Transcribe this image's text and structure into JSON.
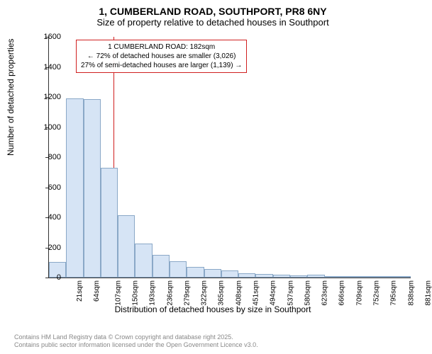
{
  "title": "1, CUMBERLAND ROAD, SOUTHPORT, PR8 6NY",
  "subtitle": "Size of property relative to detached houses in Southport",
  "y_axis_label": "Number of detached properties",
  "x_axis_label": "Distribution of detached houses by size in Southport",
  "chart": {
    "type": "histogram",
    "bar_fill": "#d6e4f5",
    "bar_stroke": "#8aa8c7",
    "background_color": "#ffffff",
    "y_ticks": [
      0,
      200,
      400,
      600,
      800,
      1000,
      1200,
      1400,
      1600
    ],
    "ylim": [
      0,
      1600
    ],
    "x_tick_labels": [
      "21sqm",
      "64sqm",
      "107sqm",
      "150sqm",
      "193sqm",
      "236sqm",
      "279sqm",
      "322sqm",
      "365sqm",
      "408sqm",
      "451sqm",
      "494sqm",
      "537sqm",
      "580sqm",
      "623sqm",
      "666sqm",
      "709sqm",
      "752sqm",
      "795sqm",
      "838sqm",
      "881sqm"
    ],
    "values": [
      105,
      1190,
      1185,
      730,
      415,
      225,
      150,
      110,
      70,
      55,
      45,
      30,
      25,
      18,
      15,
      20,
      10,
      5,
      5,
      3,
      3
    ],
    "reference_line_index": 3.75,
    "reference_line_color": "#d02020"
  },
  "annotation": {
    "line1": "1 CUMBERLAND ROAD: 182sqm",
    "line2": "← 72% of detached houses are smaller (3,026)",
    "line3": "27% of semi-detached houses are larger (1,139) →",
    "border_color": "#d02020"
  },
  "footer": {
    "line1": "Contains HM Land Registry data © Crown copyright and database right 2025.",
    "line2": "Contains public sector information licensed under the Open Government Licence v3.0."
  }
}
